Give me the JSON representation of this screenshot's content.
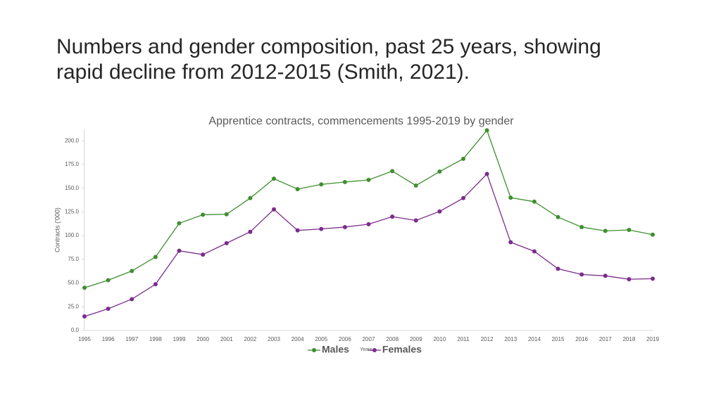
{
  "slide_title": [
    "Numbers and gender composition, past 25 years, showing",
    "rapid decline from 2012-2015 (Smith, 2021)."
  ],
  "chart_data": {
    "type": "line",
    "title": "Apprentice contracts, commencements 1995-2019 by gender",
    "y_label": "Contracts ('000)",
    "x_label": "Years",
    "categories": [
      "1995",
      "1996",
      "1997",
      "1998",
      "1999",
      "2000",
      "2001",
      "2002",
      "2003",
      "2004",
      "2005",
      "2006",
      "2007",
      "2008",
      "2009",
      "2010",
      "2011",
      "2012",
      "2013",
      "2014",
      "2015",
      "2016",
      "2017",
      "2018",
      "2019"
    ],
    "series": [
      {
        "name": "Males",
        "color": "#3f8f2f",
        "values": [
          45,
          53,
          62.7,
          77.5,
          113,
          122,
          122.5,
          139.5,
          160,
          149,
          154,
          156.5,
          158.7,
          168,
          152.8,
          167.5,
          181,
          211,
          140,
          135.8,
          119.5,
          109,
          105,
          106,
          101
        ]
      },
      {
        "name": "Females",
        "color": "#7b2c8b",
        "values": [
          14.8,
          22.9,
          33,
          48.7,
          84,
          80,
          92,
          104,
          127.7,
          105.5,
          107,
          109,
          112,
          120,
          116,
          125.5,
          139.5,
          165,
          93,
          83.4,
          65,
          59,
          57.6,
          54,
          54.6
        ]
      }
    ],
    "ylim": [
      0,
      212
    ],
    "yticks": [
      {
        "value": 0,
        "label": "0.0"
      },
      {
        "value": 25,
        "label": "25.0"
      },
      {
        "value": 50,
        "label": "50.0"
      },
      {
        "value": 75,
        "label": "75.0"
      },
      {
        "value": 100,
        "label": "100.0"
      },
      {
        "value": 125,
        "label": "125.0"
      },
      {
        "value": 150,
        "label": "150.0"
      },
      {
        "value": 175,
        "label": "175.0"
      },
      {
        "value": 200,
        "label": "200.0"
      }
    ],
    "legend": "bottom"
  }
}
